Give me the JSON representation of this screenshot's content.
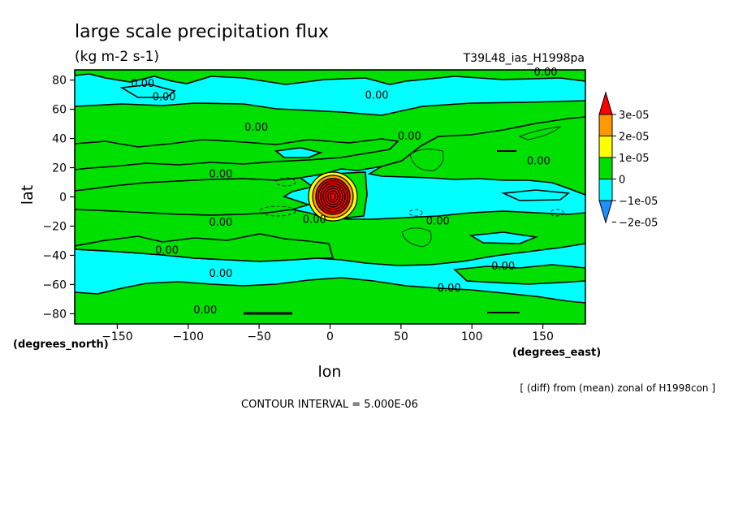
{
  "chart_data": {
    "type": "heatmap",
    "title": "large scale precipitation flux",
    "subtitle": "(kg m-2 s-1)",
    "experiment": "T39L48_ias_H1998pa",
    "xlabel": "lon",
    "ylabel": "lat",
    "x_unit_label": "(degrees_east)",
    "y_unit_label": "(degrees_north)",
    "xlim": [
      -180,
      180
    ],
    "ylim": [
      -87,
      87
    ],
    "x_ticks": [
      -150,
      -100,
      -50,
      0,
      50,
      100,
      150
    ],
    "y_ticks": [
      80,
      60,
      40,
      20,
      0,
      -20,
      -40,
      -60,
      -80
    ],
    "colorbar": {
      "labels": [
        "3e-05",
        "2e-05",
        "1e-05",
        "0",
        "-1e-05",
        "-2e-05"
      ],
      "label_values": [
        3e-05,
        2e-05,
        1e-05,
        0,
        -1e-05,
        -2e-05
      ],
      "levels": [
        -3e-05,
        -2e-05,
        -1e-05,
        0,
        1e-05,
        2e-05,
        3e-05,
        4e-05
      ],
      "colors": [
        "#1e8fff",
        "#00ffff",
        "#00e000",
        "#ffff00",
        "#ff9900",
        "#ff0000"
      ]
    },
    "contour_label": "0.00",
    "zero_contour_labels": [
      {
        "lon": -132,
        "lat": 78
      },
      {
        "lon": -117,
        "lat": 69
      },
      {
        "lon": 33,
        "lat": 70
      },
      {
        "lon": -52,
        "lat": 48
      },
      {
        "lon": 56,
        "lat": 42
      },
      {
        "lon": -77,
        "lat": 16
      },
      {
        "lon": 147,
        "lat": 25
      },
      {
        "lon": -77,
        "lat": -17
      },
      {
        "lon": -11,
        "lat": -15
      },
      {
        "lon": 76,
        "lat": -16
      },
      {
        "lon": -115,
        "lat": -36
      },
      {
        "lon": -77,
        "lat": -52
      },
      {
        "lon": 122,
        "lat": -47
      },
      {
        "lon": 84,
        "lat": -62
      },
      {
        "lon": -88,
        "lat": -77
      },
      {
        "lon": 152,
        "lat": 86
      }
    ],
    "grid": false,
    "legend": "right"
  },
  "annotations": {
    "source": "[ (diff) from (mean) zonal of H1998con ]",
    "contour_interval": "CONTOUR INTERVAL = 5.000E-06"
  }
}
